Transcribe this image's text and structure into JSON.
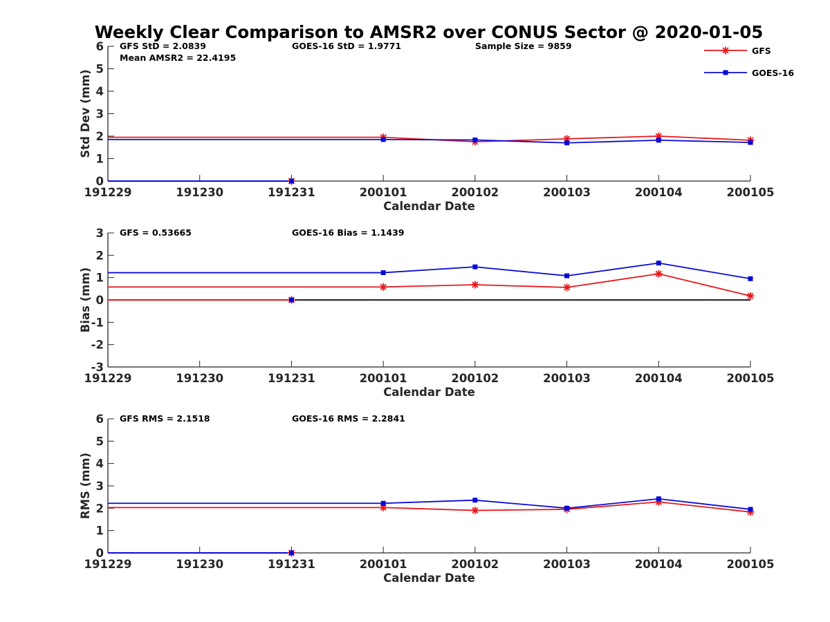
{
  "title": "Weekly Clear Comparison to AMSR2 over CONUS Sector @ 2020-01-05",
  "colors": {
    "gfs": "#e8161b",
    "goes": "#0a0ad6",
    "axis": "#262626",
    "zero_line": "#000000"
  },
  "legend": {
    "position": "top-right",
    "items": [
      {
        "label": "GFS",
        "marker": "asterisk",
        "color": "#e8161b"
      },
      {
        "label": "GOES-16",
        "marker": "square",
        "color": "#0a0ad6"
      }
    ]
  },
  "chart_data": [
    {
      "type": "line",
      "ylabel": "Std Dev (mm)",
      "xlabel": "Calendar Date",
      "ylim": [
        0,
        6
      ],
      "yticks": [
        0,
        1,
        2,
        3,
        4,
        5,
        6
      ],
      "categories": [
        "191229",
        "191230",
        "191231",
        "200101",
        "200102",
        "200103",
        "200104",
        "200105"
      ],
      "annotations": [
        {
          "text": "GFS StD = 2.0839",
          "row": 0,
          "col": 0
        },
        {
          "text": "Mean AMSR2 = 22.4195",
          "row": 1,
          "col": 0
        },
        {
          "text": "GOES-16 StD = 1.9771",
          "row": 0,
          "col": 1
        },
        {
          "text": "Sample Size = 9859",
          "row": 0,
          "col": 2
        }
      ],
      "series": [
        {
          "name": "GFS",
          "color": "#e8161b",
          "marker": "asterisk",
          "line_start": 0,
          "line_values": [
            1.95,
            1.95,
            1.95,
            1.95,
            1.75,
            1.88,
            2.0,
            1.82
          ],
          "markers": [
            {
              "i": 2,
              "v": 0
            },
            {
              "i": 3,
              "v": 1.95
            },
            {
              "i": 4,
              "v": 1.75
            },
            {
              "i": 5,
              "v": 1.88
            },
            {
              "i": 6,
              "v": 2.0
            },
            {
              "i": 7,
              "v": 1.82
            }
          ]
        },
        {
          "name": "GOES-16",
          "color": "#0a0ad6",
          "marker": "square",
          "line_start": 0,
          "line_values": [
            1.85,
            1.85,
            1.85,
            1.85,
            1.83,
            1.7,
            1.82,
            1.72
          ],
          "markers": [
            {
              "i": 2,
              "v": 0
            },
            {
              "i": 3,
              "v": 1.85
            },
            {
              "i": 4,
              "v": 1.83
            },
            {
              "i": 5,
              "v": 1.7
            },
            {
              "i": 6,
              "v": 1.82
            },
            {
              "i": 7,
              "v": 1.72
            }
          ]
        }
      ],
      "baseline_segments": [
        {
          "color": "#e8161b",
          "from": 0,
          "to": 2,
          "v": 0
        },
        {
          "color": "#0a0ad6",
          "from": 0,
          "to": 2,
          "v": 0
        }
      ]
    },
    {
      "type": "line",
      "ylabel": "Bias (mm)",
      "xlabel": "Calendar Date",
      "ylim": [
        -3,
        3
      ],
      "yticks": [
        -3,
        -2,
        -1,
        0,
        1,
        2,
        3
      ],
      "zero_line": true,
      "categories": [
        "191229",
        "191230",
        "191231",
        "200101",
        "200102",
        "200103",
        "200104",
        "200105"
      ],
      "annotations": [
        {
          "text": "GFS = 0.53665",
          "row": 0,
          "col": 0
        },
        {
          "text": "GOES-16 Bias  = 1.1439",
          "row": 0,
          "col": 1
        }
      ],
      "series": [
        {
          "name": "GFS",
          "color": "#e8161b",
          "marker": "asterisk",
          "line_start": 0,
          "line_values": [
            0.58,
            0.58,
            0.58,
            0.58,
            0.68,
            0.56,
            1.17,
            0.18
          ],
          "markers": [
            {
              "i": 2,
              "v": 0
            },
            {
              "i": 3,
              "v": 0.58
            },
            {
              "i": 4,
              "v": 0.68
            },
            {
              "i": 5,
              "v": 0.56
            },
            {
              "i": 6,
              "v": 1.17
            },
            {
              "i": 7,
              "v": 0.18
            }
          ]
        },
        {
          "name": "GOES-16",
          "color": "#0a0ad6",
          "marker": "square",
          "line_start": 0,
          "line_values": [
            1.22,
            1.22,
            1.22,
            1.22,
            1.48,
            1.08,
            1.65,
            0.95
          ],
          "markers": [
            {
              "i": 2,
              "v": 0
            },
            {
              "i": 3,
              "v": 1.22
            },
            {
              "i": 4,
              "v": 1.48
            },
            {
              "i": 5,
              "v": 1.08
            },
            {
              "i": 6,
              "v": 1.65
            },
            {
              "i": 7,
              "v": 0.95
            }
          ]
        }
      ],
      "baseline_segments": [
        {
          "color": "#0a0ad6",
          "from": 0,
          "to": 2,
          "v": 0
        },
        {
          "color": "#e8161b",
          "from": 0,
          "to": 2,
          "v": 0
        }
      ]
    },
    {
      "type": "line",
      "ylabel": "RMS (mm)",
      "xlabel": "Calendar Date",
      "ylim": [
        0,
        6
      ],
      "yticks": [
        0,
        1,
        2,
        3,
        4,
        5,
        6
      ],
      "categories": [
        "191229",
        "191230",
        "191231",
        "200101",
        "200102",
        "200103",
        "200104",
        "200105"
      ],
      "annotations": [
        {
          "text": "GFS RMS = 2.1518",
          "row": 0,
          "col": 0
        },
        {
          "text": "GOES-16 RMS = 2.2841",
          "row": 0,
          "col": 1
        }
      ],
      "series": [
        {
          "name": "GFS",
          "color": "#e8161b",
          "marker": "asterisk",
          "line_start": 0,
          "line_values": [
            2.03,
            2.03,
            2.03,
            2.03,
            1.9,
            1.95,
            2.28,
            1.83
          ],
          "markers": [
            {
              "i": 2,
              "v": 0
            },
            {
              "i": 3,
              "v": 2.03
            },
            {
              "i": 4,
              "v": 1.9
            },
            {
              "i": 5,
              "v": 1.95
            },
            {
              "i": 6,
              "v": 2.28
            },
            {
              "i": 7,
              "v": 1.83
            }
          ]
        },
        {
          "name": "GOES-16",
          "color": "#0a0ad6",
          "marker": "square",
          "line_start": 0,
          "line_values": [
            2.22,
            2.22,
            2.22,
            2.22,
            2.36,
            2.0,
            2.42,
            1.95
          ],
          "markers": [
            {
              "i": 2,
              "v": 0
            },
            {
              "i": 3,
              "v": 2.22
            },
            {
              "i": 4,
              "v": 2.36
            },
            {
              "i": 5,
              "v": 2.0
            },
            {
              "i": 6,
              "v": 2.42
            },
            {
              "i": 7,
              "v": 1.95
            }
          ]
        }
      ],
      "baseline_segments": [
        {
          "color": "#e8161b",
          "from": 0,
          "to": 2,
          "v": 0
        },
        {
          "color": "#0a0ad6",
          "from": 0,
          "to": 2,
          "v": 0
        }
      ]
    }
  ]
}
